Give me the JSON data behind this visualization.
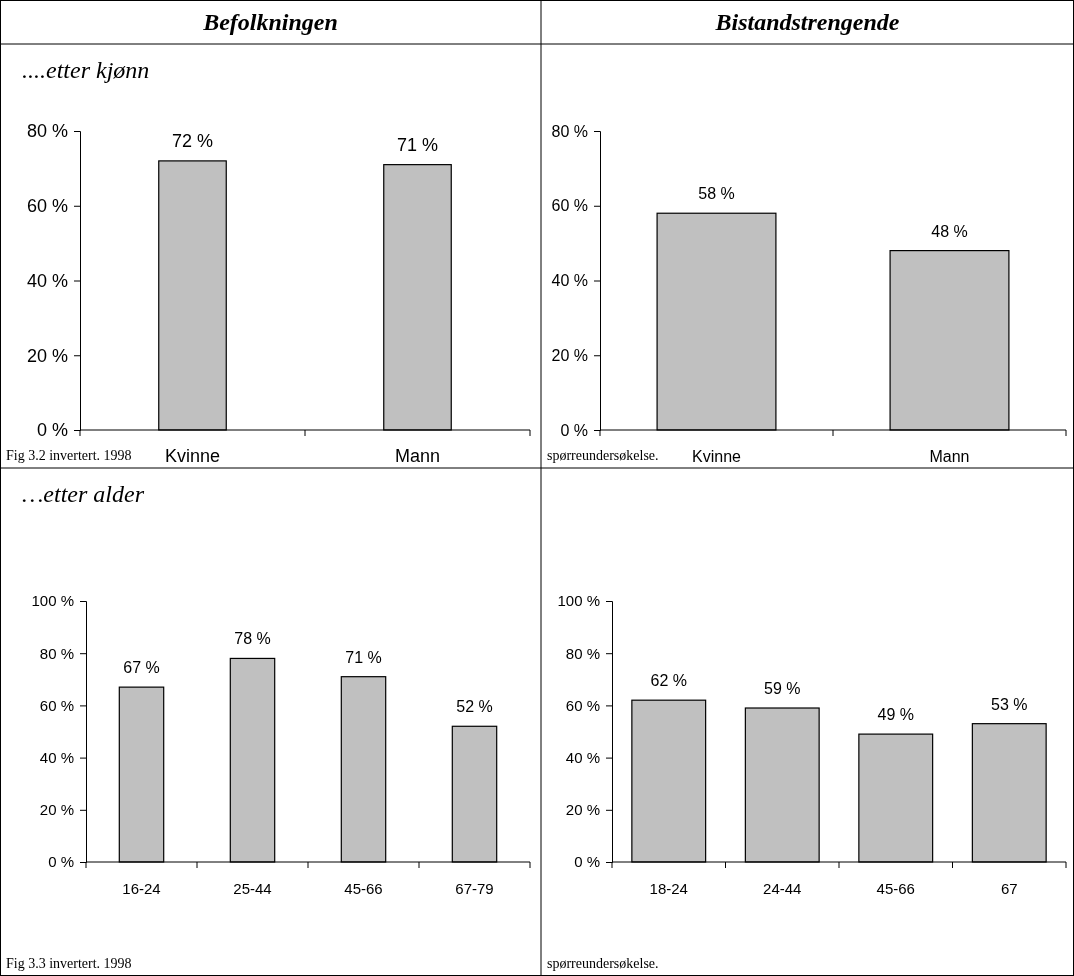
{
  "chart_data": [
    {
      "type": "bar",
      "title": "Befolkningen",
      "subtitle": "....etter kjønn",
      "categories": [
        "Kvinne",
        "Mann"
      ],
      "values": [
        72,
        71
      ],
      "color": "#c0c0c0",
      "ylim": [
        0,
        80
      ],
      "yticks": [
        {
          "value": 0,
          "label": "0 %"
        },
        {
          "value": 20,
          "label": "20 %"
        },
        {
          "value": 40,
          "label": "40 %"
        },
        {
          "value": 60,
          "label": "60 %"
        },
        {
          "value": 80,
          "label": "80 %"
        }
      ],
      "value_labels": [
        "72 %",
        "71 %"
      ],
      "grid": false,
      "annotations": [
        "Fig 3.2 invertert. 1998"
      ]
    },
    {
      "type": "bar",
      "title": "Bistandstrengende",
      "categories": [
        "Kvinne",
        "Mann"
      ],
      "values": [
        58,
        48
      ],
      "color": "#c0c0c0",
      "ylim": [
        0,
        80
      ],
      "yticks": [
        {
          "value": 0,
          "label": "0 %"
        },
        {
          "value": 20,
          "label": "20 %"
        },
        {
          "value": 40,
          "label": "40 %"
        },
        {
          "value": 60,
          "label": "60 %"
        },
        {
          "value": 80,
          "label": "80 %"
        }
      ],
      "value_labels": [
        "58 %",
        "48 %"
      ],
      "grid": false,
      "annotations": [
        "spørreundersøkelse."
      ]
    },
    {
      "type": "bar",
      "subtitle": "…etter alder",
      "categories": [
        "16-24",
        "25-44",
        "45-66",
        "67-79"
      ],
      "values": [
        67,
        78,
        71,
        52
      ],
      "color": "#c0c0c0",
      "ylim": [
        0,
        100
      ],
      "yticks": [
        {
          "value": 0,
          "label": "0 %"
        },
        {
          "value": 20,
          "label": "20 %"
        },
        {
          "value": 40,
          "label": "40 %"
        },
        {
          "value": 60,
          "label": "60 %"
        },
        {
          "value": 80,
          "label": "80 %"
        },
        {
          "value": 100,
          "label": "100 %"
        }
      ],
      "value_labels": [
        "67 %",
        "78 %",
        "71 %",
        "52 %"
      ],
      "grid": false,
      "annotations": [
        "Fig 3.3 invertert. 1998"
      ]
    },
    {
      "type": "bar",
      "categories": [
        "18-24",
        "24-44",
        "45-66",
        "67"
      ],
      "values": [
        62,
        59,
        49,
        53
      ],
      "color": "#c0c0c0",
      "ylim": [
        0,
        100
      ],
      "yticks": [
        {
          "value": 0,
          "label": "0 %"
        },
        {
          "value": 20,
          "label": "20 %"
        },
        {
          "value": 40,
          "label": "40 %"
        },
        {
          "value": 60,
          "label": "60 %"
        },
        {
          "value": 80,
          "label": "80 %"
        },
        {
          "value": 100,
          "label": "100 %"
        }
      ],
      "value_labels": [
        "62 %",
        "59 %",
        "49 %",
        "53 %"
      ],
      "grid": false,
      "annotations": [
        "spørreundersøkelse."
      ]
    }
  ]
}
